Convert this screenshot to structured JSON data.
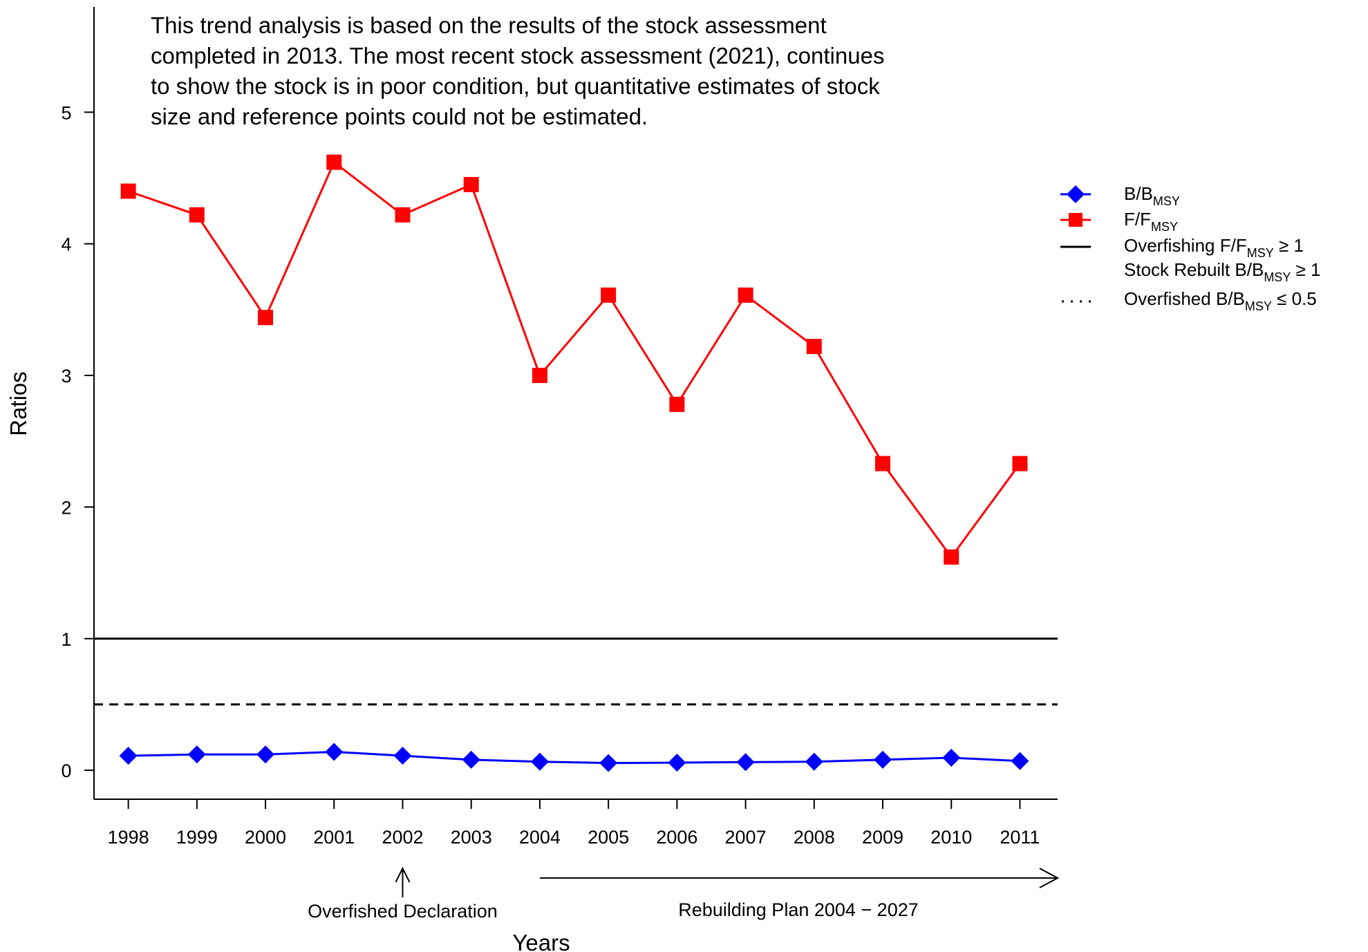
{
  "chart_data": {
    "type": "line",
    "xlabel": "Years",
    "ylabel": "Ratios",
    "x": [
      1998,
      1999,
      2000,
      2001,
      2002,
      2003,
      2004,
      2005,
      2006,
      2007,
      2008,
      2009,
      2010,
      2011
    ],
    "xlim": [
      1997.5,
      2011.55
    ],
    "ylim": [
      -0.22,
      5.8
    ],
    "yticks": [
      0,
      1,
      2,
      3,
      4,
      5
    ],
    "series": [
      {
        "name": "B/B",
        "name_sub": "MSY",
        "color": "#0000ff",
        "marker": "diamond",
        "values": [
          0.11,
          0.12,
          0.12,
          0.14,
          0.11,
          0.08,
          0.065,
          0.055,
          0.058,
          0.062,
          0.065,
          0.08,
          0.095,
          0.07
        ]
      },
      {
        "name": "F/F",
        "name_sub": "MSY",
        "color": "#ff0000",
        "marker": "square",
        "values": [
          4.4,
          4.22,
          3.44,
          4.62,
          4.22,
          4.45,
          3.0,
          3.61,
          2.78,
          3.61,
          3.22,
          2.33,
          1.62,
          2.33
        ]
      }
    ],
    "reference_lines": [
      {
        "y": 1.0,
        "style": "solid"
      },
      {
        "y": 0.5,
        "style": "dashed"
      }
    ],
    "note_lines": [
      "This trend analysis is based on the results of the stock assessment",
      "completed in 2013. The most recent stock assessment (2021), continues",
      "to show the stock is in poor condition, but quantitative estimates of stock",
      "size and reference points could not be estimated."
    ],
    "legend": {
      "placement": "right",
      "overfishing": {
        "pre": "Overfishing F/F",
        "sub": "MSY",
        "post": " ≥ 1"
      },
      "rebuilt": {
        "pre": "Stock Rebuilt B/B",
        "sub": "MSY",
        "post": " ≥ 1"
      },
      "overfished": {
        "pre": "Overfished B/B",
        "sub": "MSY",
        "post": " ≤ 0.5"
      }
    },
    "annotations": {
      "declaration": {
        "text": "Overfished Declaration",
        "year": 2002
      },
      "rebuilding": {
        "text": "Rebuilding Plan 2004 − 2027",
        "start_year": 2004
      }
    }
  }
}
